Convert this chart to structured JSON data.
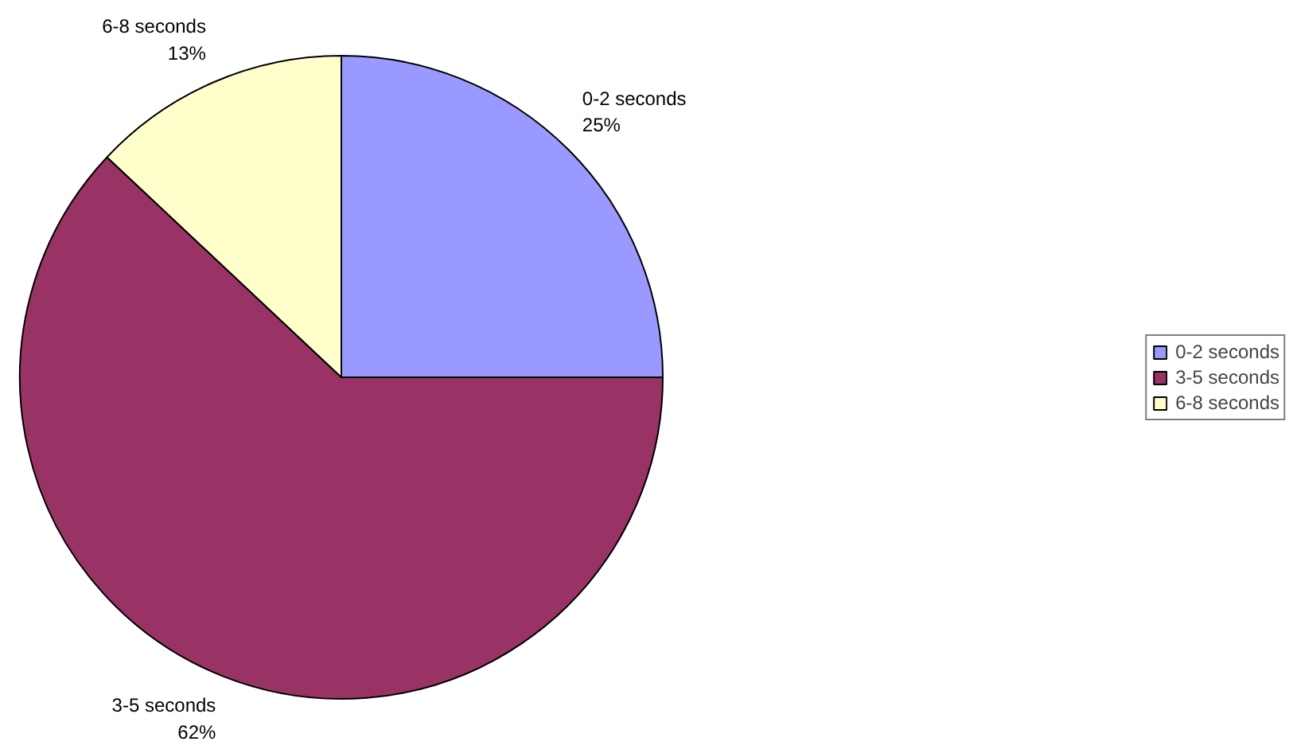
{
  "chart_data": {
    "type": "pie",
    "categories": [
      "0-2 seconds",
      "3-5 seconds",
      "6-8 seconds"
    ],
    "values": [
      25,
      62,
      13
    ],
    "colors": [
      "#9999ff",
      "#993366",
      "#ffffcc"
    ],
    "value_labels": [
      "25%",
      "62%",
      "13%"
    ],
    "legend": "right"
  }
}
